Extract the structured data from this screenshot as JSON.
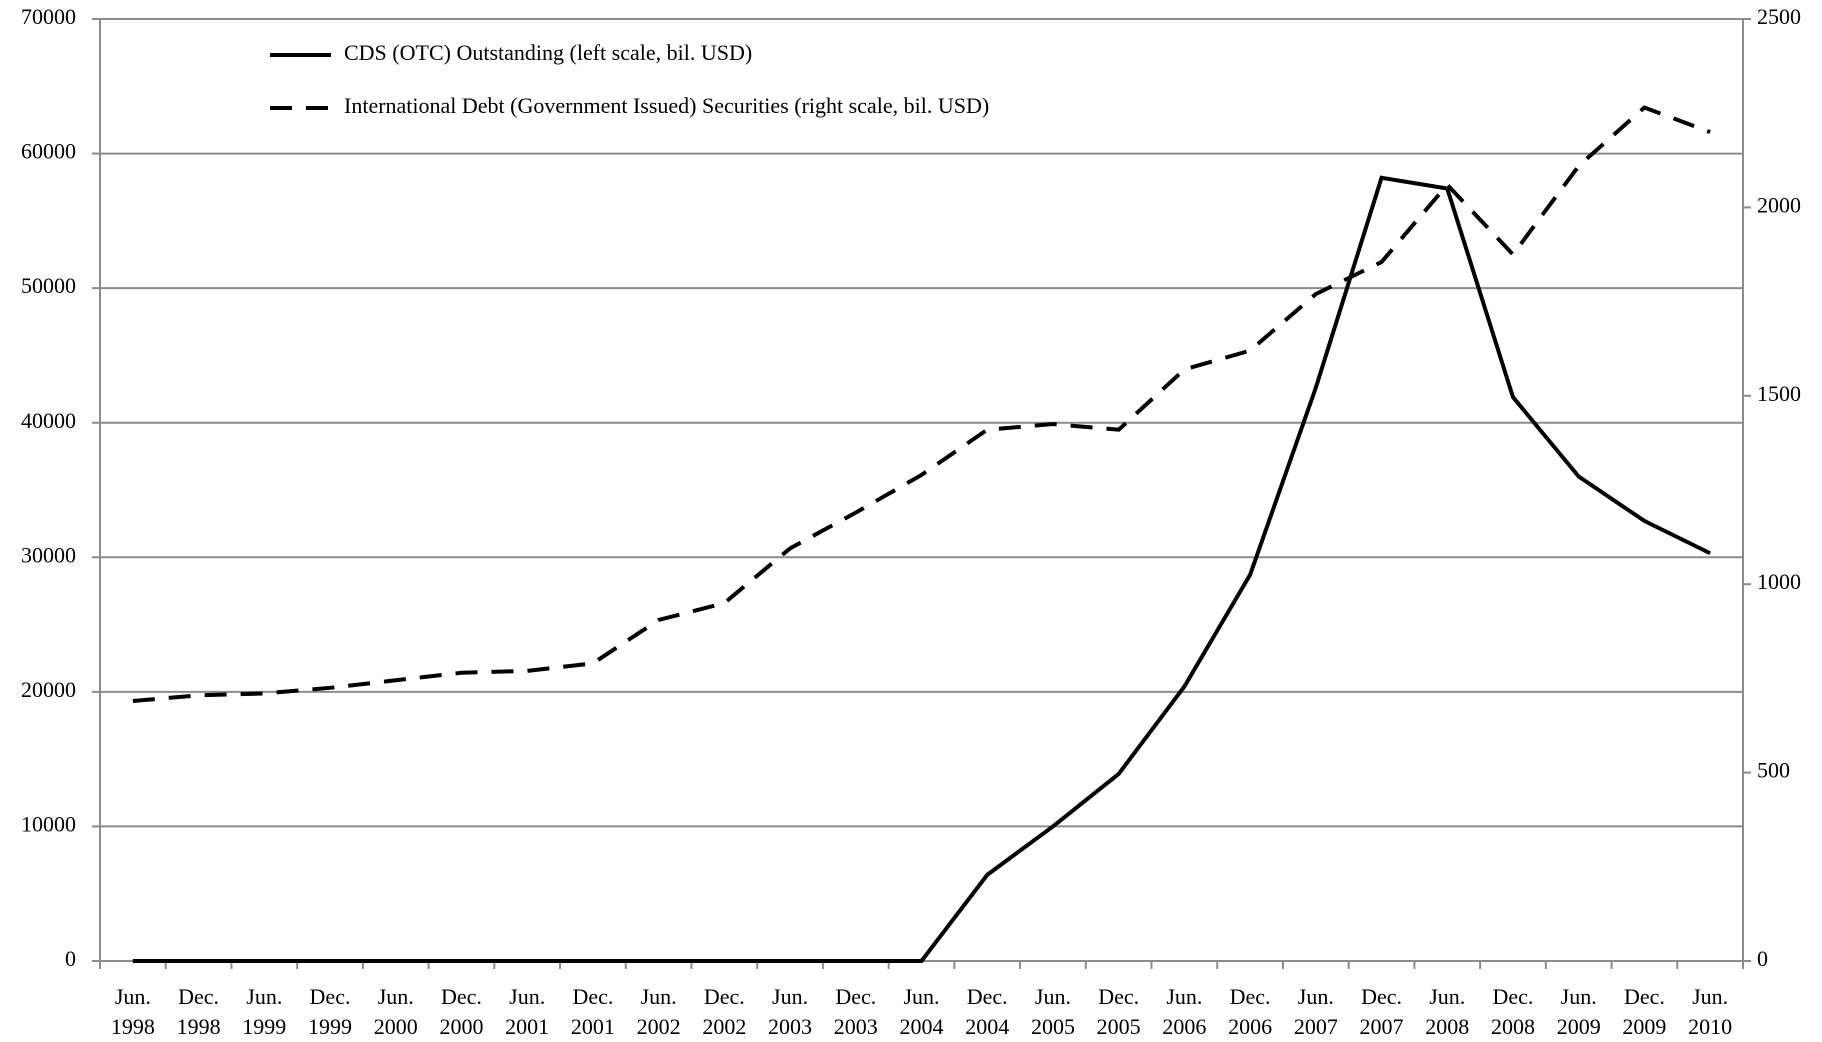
{
  "chart_data": {
    "type": "line",
    "categories": [
      "Jun. 1998",
      "Dec. 1998",
      "Jun. 1999",
      "Dec. 1999",
      "Jun. 2000",
      "Dec. 2000",
      "Jun. 2001",
      "Dec. 2001",
      "Jun. 2002",
      "Dec. 2002",
      "Jun. 2003",
      "Dec. 2003",
      "Jun. 2004",
      "Dec. 2004",
      "Jun. 2005",
      "Dec. 2005",
      "Jun. 2006",
      "Dec. 2006",
      "Jun. 2007",
      "Dec. 2007",
      "Jun. 2008",
      "Dec. 2008",
      "Jun. 2009",
      "Dec. 2009",
      "Jun. 2010"
    ],
    "series": [
      {
        "name": "CDS (OTC) Outstanding (left scale, bil. USD)",
        "color": "#000000",
        "dash": false,
        "values": [
          0,
          0,
          0,
          0,
          0,
          0,
          0,
          0,
          0,
          0,
          0,
          0,
          0,
          6400,
          10000,
          13900,
          20400,
          28700,
          42600,
          58200,
          57400,
          41900,
          36000,
          32700,
          30300
        ]
      },
      {
        "name": "International Debt (Government Issued) Securities (right scale, bil. USD)",
        "color": "#000000",
        "dash": true,
        "axis": "y2",
        "values": [
          690,
          705,
          710,
          725,
          745,
          765,
          770,
          790,
          905,
          950,
          1095,
          1190,
          1290,
          1410,
          1425,
          1410,
          1570,
          1620,
          1770,
          1855,
          2060,
          1875,
          2110,
          2265,
          2200
        ]
      }
    ],
    "ylim": [
      0,
      70000
    ],
    "yticks": [
      0,
      10000,
      20000,
      30000,
      40000,
      50000,
      60000,
      70000
    ],
    "y2lim": [
      0,
      2500
    ],
    "y2ticks": [
      0,
      500,
      1000,
      1500,
      2000,
      2500
    ],
    "grid": true,
    "legend": "top-left"
  }
}
